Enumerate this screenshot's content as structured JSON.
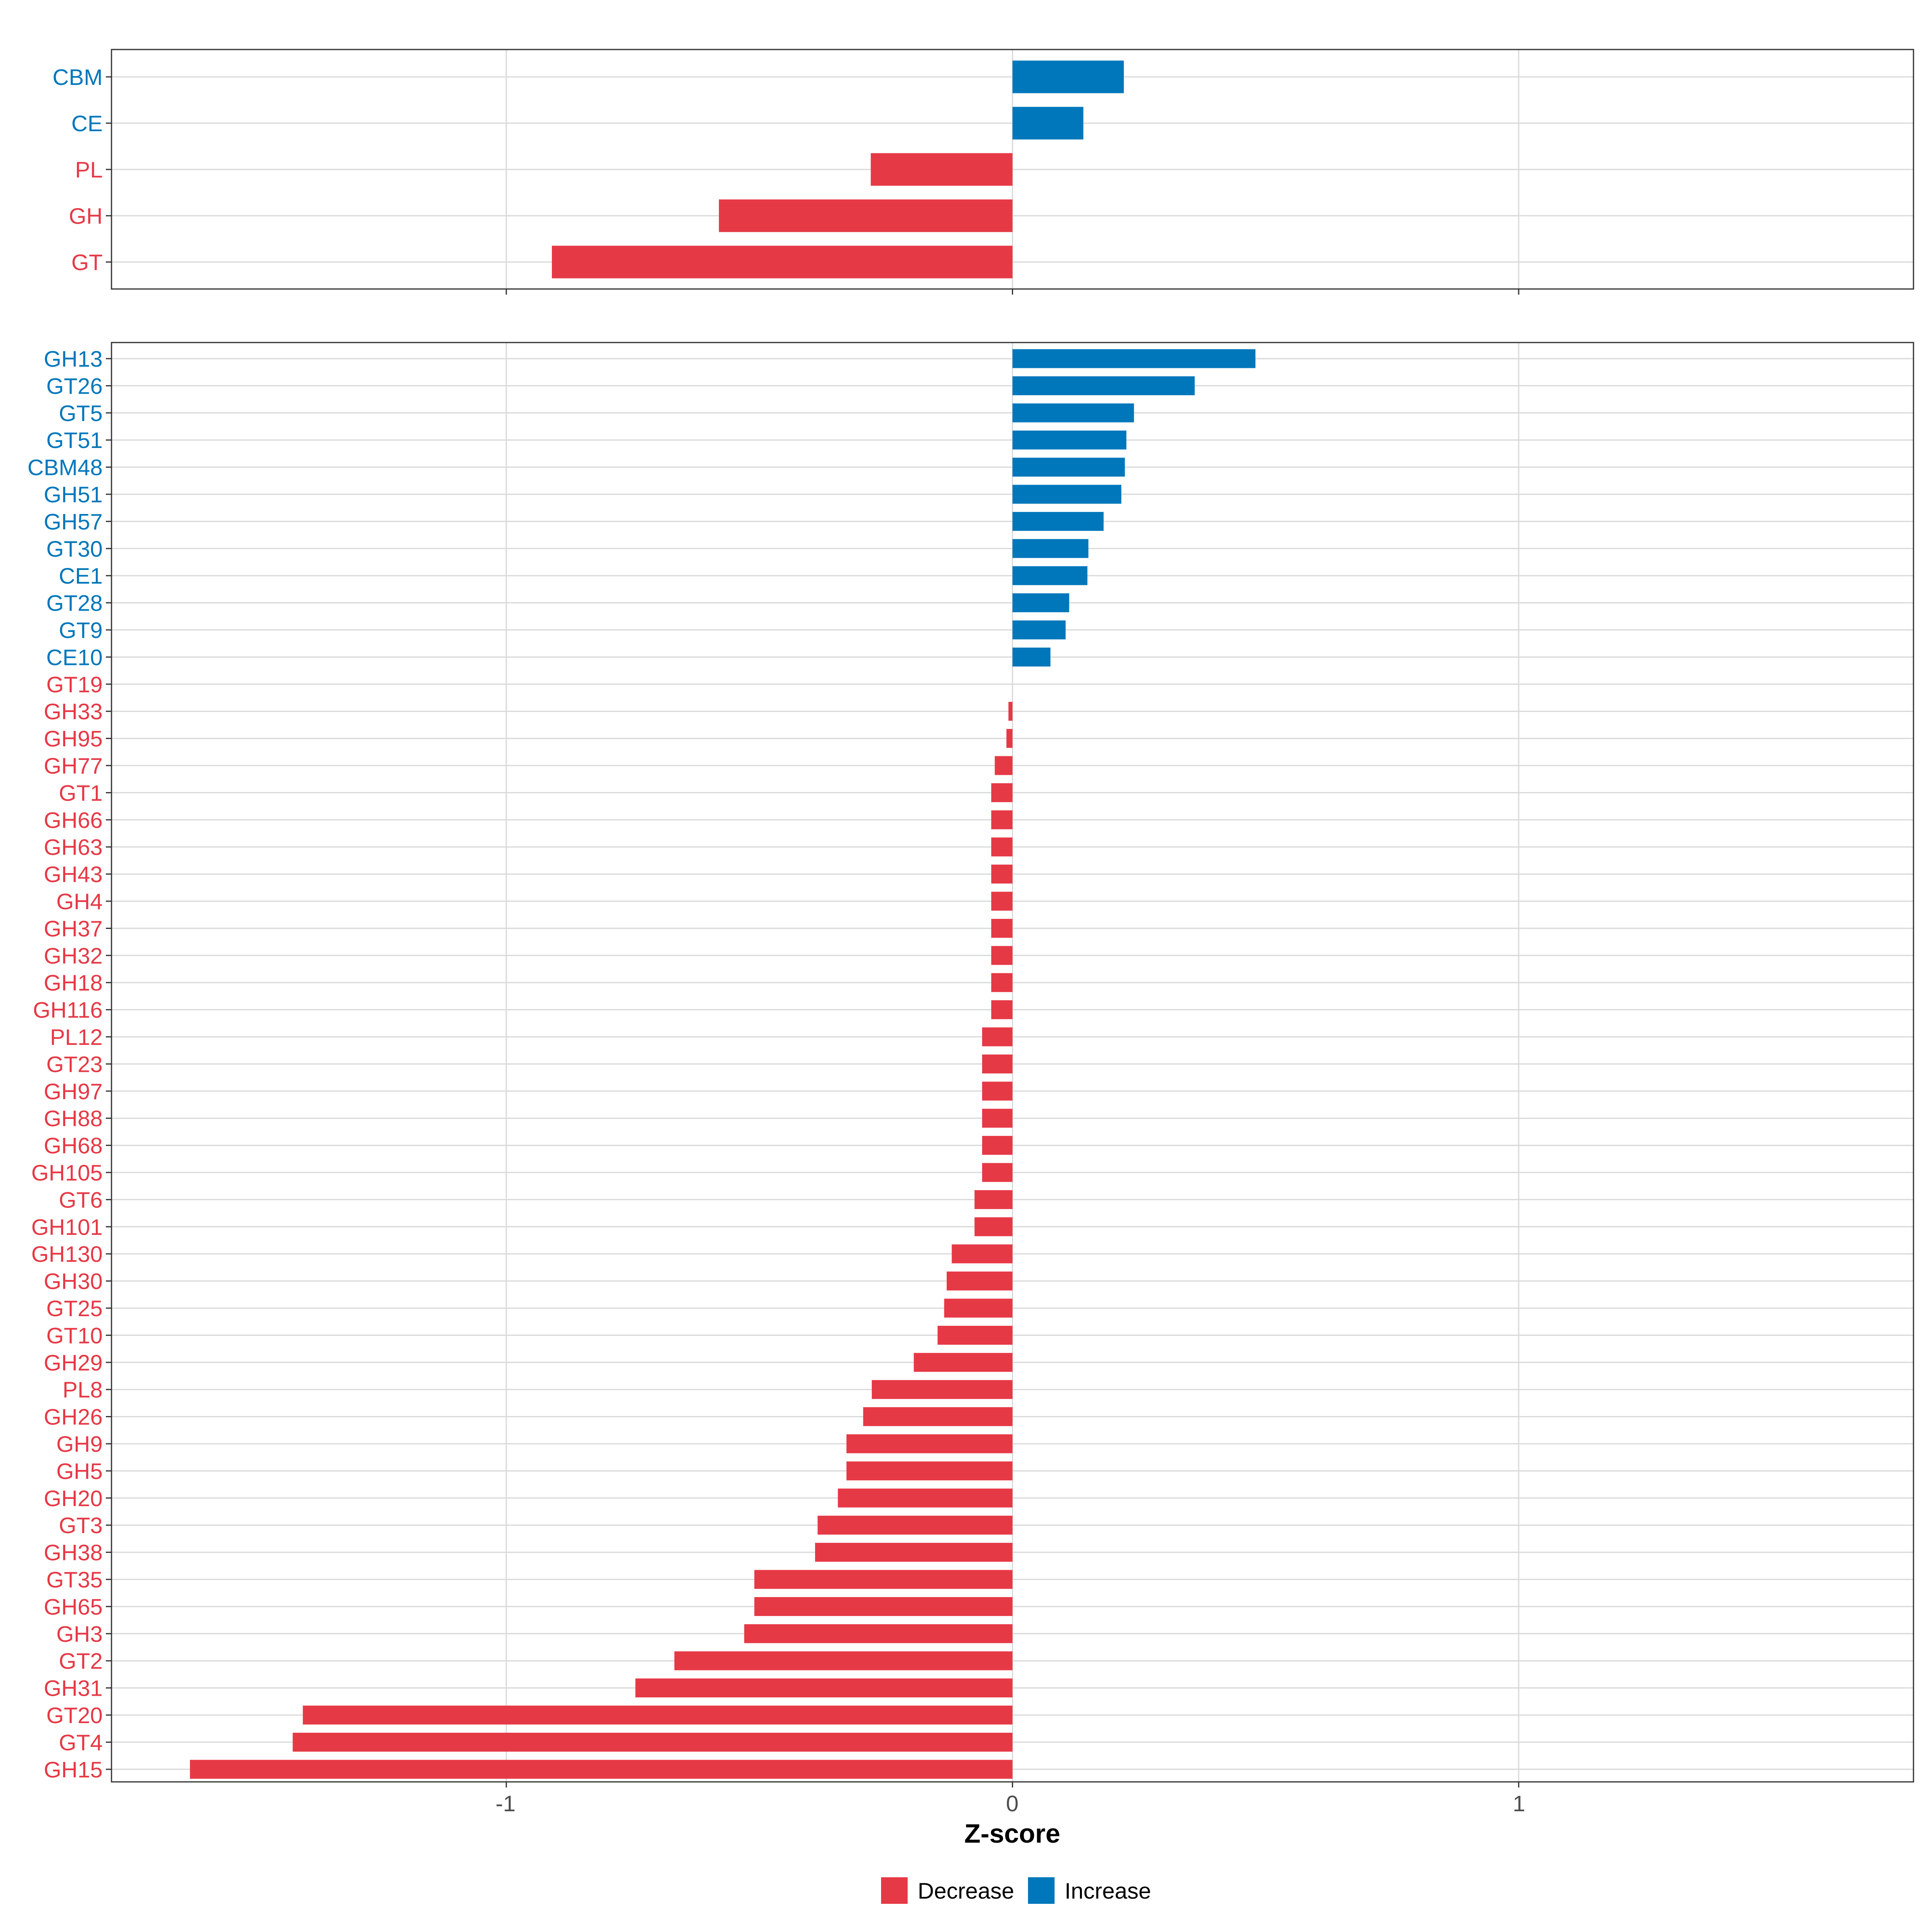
{
  "colors": {
    "decrease": "#E63946",
    "increase": "#0077BB"
  },
  "chart_data": [
    {
      "type": "bar",
      "orientation": "horizontal",
      "categories": [
        "CBM",
        "CE",
        "PL",
        "GH",
        "GT"
      ],
      "values": [
        0.22,
        0.14,
        -0.28,
        -0.58,
        -0.91
      ],
      "xlabel": "Z-score",
      "xlim": [
        -1.78,
        1.78
      ],
      "xticks": [
        -1,
        0,
        1
      ],
      "grid": true
    },
    {
      "type": "bar",
      "orientation": "horizontal",
      "categories": [
        "GH13",
        "GT26",
        "GT5",
        "GT51",
        "CBM48",
        "GH51",
        "GH57",
        "GT30",
        "CE1",
        "GT28",
        "GT9",
        "CE10",
        "GT19",
        "GH33",
        "GH95",
        "GH77",
        "GT1",
        "GH66",
        "GH63",
        "GH43",
        "GH4",
        "GH37",
        "GH32",
        "GH18",
        "GH116",
        "PL12",
        "GT23",
        "GH97",
        "GH88",
        "GH68",
        "GH105",
        "GT6",
        "GH101",
        "GH130",
        "GH30",
        "GT25",
        "GT10",
        "GH29",
        "PL8",
        "GH26",
        "GH9",
        "GH5",
        "GH20",
        "GT3",
        "GH38",
        "GT35",
        "GH65",
        "GH3",
        "GT2",
        "GH31",
        "GT20",
        "GT4",
        "GH15"
      ],
      "values": [
        0.48,
        0.36,
        0.24,
        0.225,
        0.222,
        0.215,
        0.18,
        0.15,
        0.148,
        0.112,
        0.105,
        0.075,
        0.0,
        -0.008,
        -0.012,
        -0.035,
        -0.042,
        -0.042,
        -0.042,
        -0.042,
        -0.042,
        -0.042,
        -0.042,
        -0.042,
        -0.042,
        -0.06,
        -0.06,
        -0.06,
        -0.06,
        -0.06,
        -0.06,
        -0.075,
        -0.075,
        -0.12,
        -0.13,
        -0.135,
        -0.148,
        -0.195,
        -0.278,
        -0.295,
        -0.328,
        -0.328,
        -0.345,
        -0.385,
        -0.39,
        -0.51,
        -0.51,
        -0.53,
        -0.668,
        -0.745,
        -1.402,
        -1.422,
        -1.625
      ],
      "xlabel": "Z-score",
      "xlim": [
        -1.78,
        1.78
      ],
      "xticks": [
        -1,
        0,
        1
      ],
      "xtick_labels": [
        "-1",
        "0",
        "1"
      ],
      "grid": true
    }
  ],
  "axis": {
    "title": "Z-score",
    "tick_labels": [
      "-1",
      "0",
      "1"
    ]
  },
  "legend": {
    "position": "bottom",
    "items": [
      {
        "label": "Decrease",
        "color": "#E63946"
      },
      {
        "label": "Increase",
        "color": "#0077BB"
      }
    ]
  }
}
